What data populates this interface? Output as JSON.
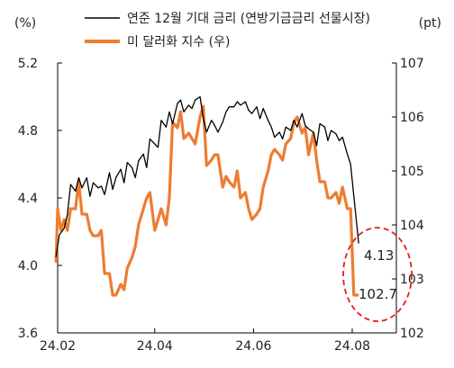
{
  "chart_data": {
    "type": "line",
    "left_unit": "(%)",
    "right_unit": "(pt)",
    "x_tick_labels": [
      "24.02",
      "24.04",
      "24.06",
      "24.08"
    ],
    "x_ticks": [
      "2024-02",
      "2024-04",
      "2024-06",
      "2024-08"
    ],
    "y_left": {
      "range": [
        3.6,
        5.2
      ],
      "ticks": [
        3.6,
        4.0,
        4.4,
        4.8,
        5.2
      ],
      "tick_labels": [
        "3.6",
        "4.0",
        "4.4",
        "4.8",
        "5.2"
      ]
    },
    "y_right": {
      "range": [
        102,
        107
      ],
      "ticks": [
        102,
        103,
        104,
        105,
        106,
        107
      ],
      "tick_labels": [
        "102",
        "103",
        "104",
        "105",
        "106",
        "107"
      ]
    },
    "series": [
      {
        "name": "연준 12월 기대 금리 (연방기금금리 선물시장)",
        "axis": "left",
        "color": "#000000",
        "dates": [
          "2024-01-31",
          "2024-02-02",
          "2024-02-05",
          "2024-02-07",
          "2024-02-09",
          "2024-02-12",
          "2024-02-14",
          "2024-02-16",
          "2024-02-19",
          "2024-02-21",
          "2024-02-23",
          "2024-02-26",
          "2024-02-28",
          "2024-03-01",
          "2024-03-04",
          "2024-03-06",
          "2024-03-08",
          "2024-03-11",
          "2024-03-13",
          "2024-03-15",
          "2024-03-18",
          "2024-03-20",
          "2024-03-22",
          "2024-03-25",
          "2024-03-27",
          "2024-03-29",
          "2024-04-01",
          "2024-04-03",
          "2024-04-05",
          "2024-04-08",
          "2024-04-10",
          "2024-04-12",
          "2024-04-15",
          "2024-04-17",
          "2024-04-19",
          "2024-04-22",
          "2024-04-24",
          "2024-04-26",
          "2024-04-29",
          "2024-05-01",
          "2024-05-03",
          "2024-05-06",
          "2024-05-08",
          "2024-05-10",
          "2024-05-13",
          "2024-05-15",
          "2024-05-17",
          "2024-05-20",
          "2024-05-22",
          "2024-05-24",
          "2024-05-27",
          "2024-05-29",
          "2024-05-31",
          "2024-06-03",
          "2024-06-05",
          "2024-06-07",
          "2024-06-10",
          "2024-06-12",
          "2024-06-14",
          "2024-06-17",
          "2024-06-19",
          "2024-06-21",
          "2024-06-24",
          "2024-06-26",
          "2024-06-28",
          "2024-07-01",
          "2024-07-03",
          "2024-07-05",
          "2024-07-08",
          "2024-07-10",
          "2024-07-12",
          "2024-07-15",
          "2024-07-17",
          "2024-07-19",
          "2024-07-22",
          "2024-07-24",
          "2024-07-26",
          "2024-07-29",
          "2024-07-31",
          "2024-08-02",
          "2024-08-05"
        ],
        "values": [
          4.05,
          4.18,
          4.22,
          4.3,
          4.48,
          4.44,
          4.52,
          4.46,
          4.52,
          4.41,
          4.49,
          4.46,
          4.47,
          4.42,
          4.55,
          4.45,
          4.52,
          4.57,
          4.49,
          4.61,
          4.58,
          4.52,
          4.62,
          4.66,
          4.58,
          4.75,
          4.72,
          4.7,
          4.86,
          4.82,
          4.91,
          4.84,
          4.96,
          4.98,
          4.91,
          4.95,
          4.93,
          4.98,
          5.0,
          4.87,
          4.79,
          4.86,
          4.83,
          4.79,
          4.85,
          4.91,
          4.94,
          4.94,
          4.97,
          4.95,
          4.97,
          4.92,
          4.9,
          4.94,
          4.87,
          4.93,
          4.86,
          4.82,
          4.76,
          4.79,
          4.75,
          4.82,
          4.8,
          4.86,
          4.82,
          4.9,
          4.83,
          4.81,
          4.79,
          4.71,
          4.84,
          4.82,
          4.74,
          4.8,
          4.78,
          4.74,
          4.76,
          4.66,
          4.6,
          4.41,
          4.13
        ]
      },
      {
        "name": "미 달러화 지수 (우)",
        "axis": "right",
        "color": "#ed7d31",
        "dates": [
          "2024-01-31",
          "2024-02-01",
          "2024-02-03",
          "2024-02-05",
          "2024-02-07",
          "2024-02-09",
          "2024-02-12",
          "2024-02-14",
          "2024-02-16",
          "2024-02-19",
          "2024-02-21",
          "2024-02-23",
          "2024-02-26",
          "2024-02-28",
          "2024-03-01",
          "2024-03-04",
          "2024-03-06",
          "2024-03-08",
          "2024-03-11",
          "2024-03-13",
          "2024-03-15",
          "2024-03-18",
          "2024-03-20",
          "2024-03-22",
          "2024-03-25",
          "2024-03-27",
          "2024-03-29",
          "2024-04-01",
          "2024-04-03",
          "2024-04-05",
          "2024-04-08",
          "2024-04-10",
          "2024-04-12",
          "2024-04-15",
          "2024-04-17",
          "2024-04-19",
          "2024-04-22",
          "2024-04-24",
          "2024-04-26",
          "2024-04-29",
          "2024-05-01",
          "2024-05-03",
          "2024-05-06",
          "2024-05-08",
          "2024-05-10",
          "2024-05-13",
          "2024-05-15",
          "2024-05-17",
          "2024-05-20",
          "2024-05-22",
          "2024-05-24",
          "2024-05-27",
          "2024-05-29",
          "2024-05-31",
          "2024-06-03",
          "2024-06-05",
          "2024-06-07",
          "2024-06-10",
          "2024-06-12",
          "2024-06-14",
          "2024-06-17",
          "2024-06-19",
          "2024-06-21",
          "2024-06-24",
          "2024-06-26",
          "2024-06-28",
          "2024-07-01",
          "2024-07-03",
          "2024-07-05",
          "2024-07-08",
          "2024-07-10",
          "2024-07-12",
          "2024-07-15",
          "2024-07-17",
          "2024-07-19",
          "2024-07-22",
          "2024-07-24",
          "2024-07-26",
          "2024-07-29",
          "2024-07-31",
          "2024-08-02",
          "2024-08-05"
        ],
        "values": [
          103.3,
          104.3,
          103.9,
          104.1,
          103.9,
          104.3,
          104.3,
          104.8,
          104.2,
          104.2,
          103.9,
          103.8,
          103.8,
          103.9,
          103.1,
          103.1,
          102.7,
          102.7,
          102.9,
          102.8,
          103.2,
          103.4,
          103.6,
          104.0,
          104.3,
          104.5,
          104.6,
          103.9,
          104.1,
          104.3,
          104.0,
          104.5,
          105.9,
          105.8,
          106.1,
          105.6,
          105.7,
          105.6,
          105.5,
          106.0,
          106.2,
          105.1,
          105.2,
          105.3,
          105.3,
          104.7,
          104.9,
          104.8,
          104.7,
          105.0,
          104.5,
          104.6,
          104.3,
          104.1,
          104.2,
          104.3,
          104.7,
          105.0,
          105.3,
          105.4,
          105.3,
          105.2,
          105.5,
          105.6,
          105.9,
          106.0,
          105.7,
          105.8,
          105.3,
          105.7,
          105.2,
          104.8,
          104.8,
          104.5,
          104.5,
          104.6,
          104.4,
          104.7,
          104.3,
          104.3,
          102.7,
          102.7
        ]
      }
    ],
    "end_labels": {
      "rate": "4.13",
      "dollar": "102.7"
    }
  }
}
